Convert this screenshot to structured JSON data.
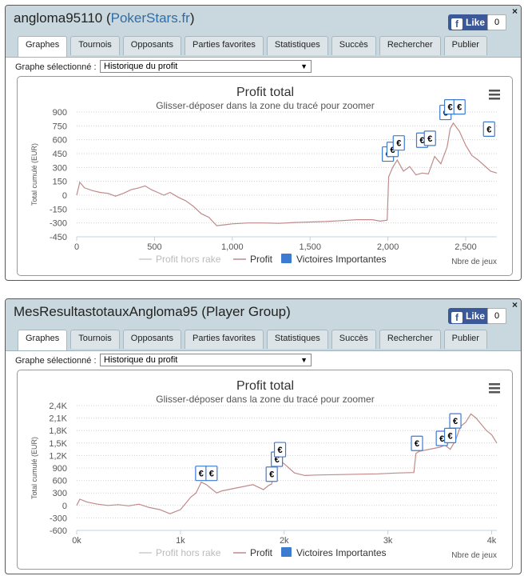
{
  "panels": [
    {
      "title_main": "angloma95110 (",
      "title_link": "PokerStars.fr",
      "title_end": ")",
      "like_label": "Like",
      "like_count": "0",
      "close": "×",
      "tabs": [
        "Graphes",
        "Tournois",
        "Opposants",
        "Parties favorites",
        "Statistiques",
        "Succès",
        "Rechercher",
        "Publier"
      ],
      "selector_label": "Graphe sélectionné :",
      "selector_value": "Historique du profit",
      "chart_data": {
        "type": "line",
        "title": "Profit total",
        "subtitle": "Glisser-déposer dans la zone du tracé pour zoomer",
        "ylabel": "Total cumulé (EUR)",
        "xlabel": "Nbre de jeux",
        "xlim": [
          0,
          2700
        ],
        "ylim": [
          -450,
          900
        ],
        "yticks": [
          "900",
          "750",
          "600",
          "450",
          "300",
          "150",
          "0",
          "-150",
          "-300",
          "-450"
        ],
        "xticks": [
          "0",
          "500",
          "1,000",
          "1,500",
          "2,000",
          "2,500"
        ],
        "legend": [
          "Profit hors rake",
          "Profit",
          "Victoires Importantes"
        ],
        "menu_icon": "hamburger-icon",
        "line_color": "#c08a8a",
        "series": [
          {
            "name": "Profit",
            "x": [
              0,
              20,
              50,
              100,
              150,
              200,
              250,
              300,
              350,
              400,
              440,
              480,
              520,
              560,
              600,
              650,
              700,
              750,
              800,
              850,
              900,
              950,
              1000,
              1100,
              1200,
              1300,
              1400,
              1500,
              1600,
              1700,
              1800,
              1900,
              1950,
              1995,
              2005,
              2030,
              2060,
              2100,
              2140,
              2180,
              2220,
              2260,
              2300,
              2340,
              2380,
              2400,
              2420,
              2460,
              2500,
              2540,
              2580,
              2620,
              2660,
              2700
            ],
            "y": [
              0,
              140,
              80,
              50,
              30,
              20,
              -10,
              20,
              60,
              80,
              100,
              60,
              30,
              0,
              30,
              -20,
              -60,
              -120,
              -200,
              -240,
              -330,
              -320,
              -310,
              -300,
              -300,
              -305,
              -295,
              -290,
              -285,
              -275,
              -265,
              -265,
              -280,
              -270,
              200,
              300,
              380,
              260,
              310,
              220,
              240,
              230,
              420,
              340,
              520,
              720,
              780,
              690,
              540,
              430,
              380,
              320,
              260,
              240
            ]
          }
        ],
        "markers_x": [
          2000,
          2030,
          2070,
          2220,
          2270,
          2370,
          2400,
          2460,
          2650
        ],
        "markers_y": [
          350,
          400,
          470,
          500,
          520,
          800,
          860,
          860,
          620
        ]
      }
    },
    {
      "title_main": "MesResultastotauxAngloma95 (Player Group)",
      "title_link": "",
      "title_end": "",
      "like_label": "Like",
      "like_count": "0",
      "close": "×",
      "tabs": [
        "Graphes",
        "Tournois",
        "Opposants",
        "Parties favorites",
        "Statistiques",
        "Succès",
        "Rechercher",
        "Publier"
      ],
      "selector_label": "Graphe sélectionné :",
      "selector_value": "Historique du profit",
      "chart_data": {
        "type": "line",
        "title": "Profit total",
        "subtitle": "Glisser-déposer dans la zone du tracé pour zoomer",
        "ylabel": "Total cumulé (EUR)",
        "xlabel": "Nbre de jeux",
        "xlim": [
          0,
          4050
        ],
        "ylim": [
          -600,
          2400
        ],
        "yticks": [
          "2,4K",
          "2,1K",
          "1,8K",
          "1,5K",
          "1,2K",
          "900",
          "600",
          "300",
          "0",
          "-300",
          "-600"
        ],
        "xticks": [
          "0k",
          "1k",
          "2k",
          "3k",
          "4k"
        ],
        "legend": [
          "Profit hors rake",
          "Profit",
          "Victoires Importantes"
        ],
        "menu_icon": "hamburger-icon",
        "line_color": "#c08a8a",
        "series": [
          {
            "name": "Profit",
            "x": [
              0,
              30,
              100,
              200,
              300,
              400,
              500,
              600,
              700,
              800,
              900,
              950,
              1000,
              1050,
              1100,
              1150,
              1200,
              1250,
              1300,
              1350,
              1400,
              1500,
              1600,
              1700,
              1800,
              1850,
              1880,
              1900,
              1950,
              2000,
              2100,
              2200,
              2300,
              2500,
              2700,
              2900,
              3100,
              3250,
              3270,
              3300,
              3400,
              3500,
              3550,
              3600,
              3650,
              3700,
              3750,
              3800,
              3850,
              3900,
              3950,
              4000,
              4050
            ],
            "y": [
              0,
              150,
              80,
              30,
              0,
              20,
              -10,
              30,
              -50,
              -100,
              -200,
              -150,
              -100,
              50,
              200,
              300,
              560,
              500,
              400,
              300,
              350,
              400,
              450,
              500,
              380,
              480,
              520,
              900,
              1100,
              1000,
              780,
              720,
              730,
              740,
              750,
              760,
              780,
              790,
              1250,
              1300,
              1350,
              1400,
              1450,
              1350,
              1550,
              1900,
              2000,
              2200,
              2100,
              1950,
              1800,
              1700,
              1500
            ]
          }
        ],
        "markers_x": [
          1200,
          1300,
          1880,
          1930,
          1960,
          3280,
          3520,
          3600,
          3650
        ],
        "markers_y": [
          560,
          560,
          540,
          900,
          1130,
          1280,
          1400,
          1470,
          1820
        ]
      }
    }
  ]
}
